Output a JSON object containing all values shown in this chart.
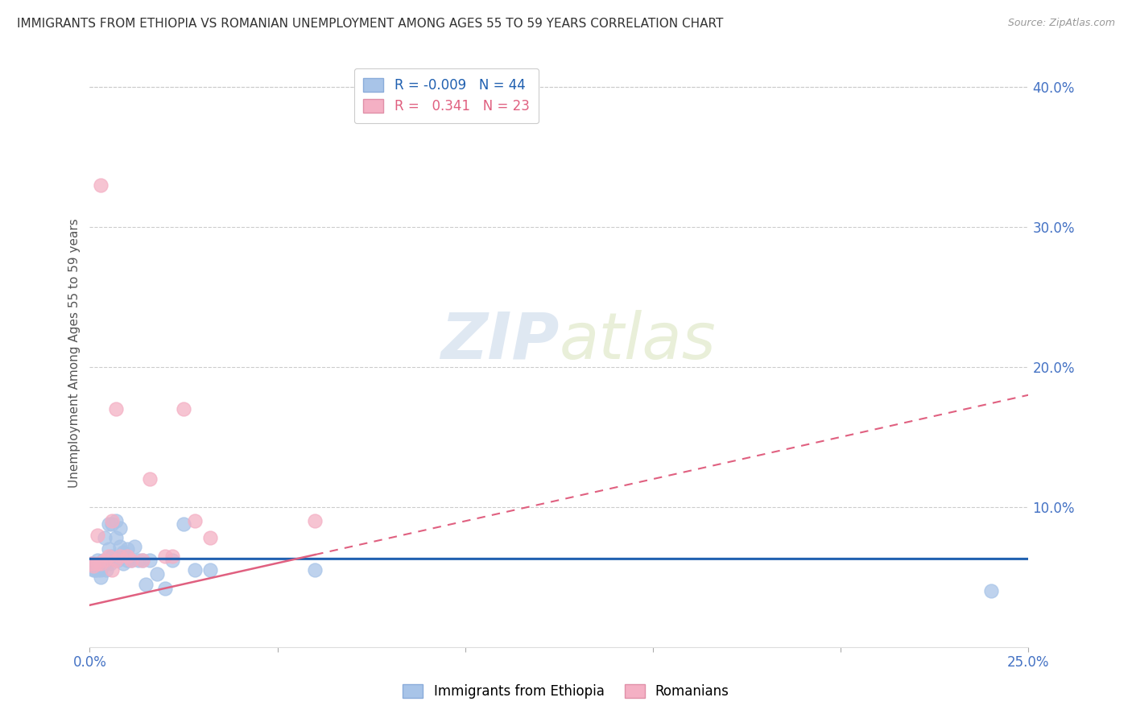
{
  "title": "IMMIGRANTS FROM ETHIOPIA VS ROMANIAN UNEMPLOYMENT AMONG AGES 55 TO 59 YEARS CORRELATION CHART",
  "source": "Source: ZipAtlas.com",
  "ylabel": "Unemployment Among Ages 55 to 59 years",
  "legend_labels": [
    "Immigrants from Ethiopia",
    "Romanians"
  ],
  "legend_r": [
    "-0.009",
    "0.341"
  ],
  "legend_n": [
    "44",
    "23"
  ],
  "blue_color": "#a8c4e8",
  "pink_color": "#f4b0c4",
  "blue_line_color": "#2060b0",
  "pink_line_color": "#e06080",
  "axis_label_color": "#4472c4",
  "title_color": "#333333",
  "grid_color": "#cccccc",
  "xlim": [
    0.0,
    0.25
  ],
  "ylim": [
    0.0,
    0.42
  ],
  "blue_x": [
    0.0005,
    0.001,
    0.001,
    0.001,
    0.0015,
    0.002,
    0.002,
    0.002,
    0.0025,
    0.003,
    0.003,
    0.003,
    0.0035,
    0.004,
    0.004,
    0.0045,
    0.005,
    0.005,
    0.0055,
    0.006,
    0.006,
    0.007,
    0.007,
    0.0075,
    0.008,
    0.008,
    0.009,
    0.009,
    0.01,
    0.01,
    0.011,
    0.012,
    0.013,
    0.014,
    0.015,
    0.016,
    0.018,
    0.02,
    0.022,
    0.025,
    0.028,
    0.032,
    0.06,
    0.24
  ],
  "blue_y": [
    0.06,
    0.06,
    0.058,
    0.055,
    0.055,
    0.062,
    0.058,
    0.055,
    0.06,
    0.06,
    0.055,
    0.05,
    0.062,
    0.078,
    0.06,
    0.055,
    0.088,
    0.07,
    0.06,
    0.088,
    0.065,
    0.09,
    0.078,
    0.062,
    0.085,
    0.072,
    0.068,
    0.06,
    0.07,
    0.062,
    0.062,
    0.072,
    0.062,
    0.062,
    0.045,
    0.062,
    0.052,
    0.042,
    0.062,
    0.088,
    0.055,
    0.055,
    0.055,
    0.04
  ],
  "pink_x": [
    0.0005,
    0.001,
    0.002,
    0.002,
    0.003,
    0.003,
    0.004,
    0.005,
    0.006,
    0.006,
    0.007,
    0.007,
    0.008,
    0.01,
    0.011,
    0.014,
    0.016,
    0.02,
    0.022,
    0.025,
    0.028,
    0.032,
    0.06
  ],
  "pink_y": [
    0.06,
    0.058,
    0.08,
    0.06,
    0.33,
    0.06,
    0.062,
    0.065,
    0.055,
    0.09,
    0.062,
    0.17,
    0.065,
    0.065,
    0.062,
    0.062,
    0.12,
    0.065,
    0.065,
    0.17,
    0.09,
    0.078,
    0.09
  ],
  "blue_line_y_intercept": 0.063,
  "blue_line_slope": -0.0001,
  "pink_line_y_intercept": 0.03,
  "pink_line_slope": 0.6,
  "xticks": [
    0.0,
    0.05,
    0.1,
    0.15,
    0.2,
    0.25
  ],
  "xtick_labels": [
    "0.0%",
    "",
    "",
    "",
    "",
    "25.0%"
  ],
  "yticks_right": [
    0.1,
    0.2,
    0.3,
    0.4
  ],
  "ytick_labels_right": [
    "10.0%",
    "20.0%",
    "30.0%",
    "40.0%"
  ]
}
